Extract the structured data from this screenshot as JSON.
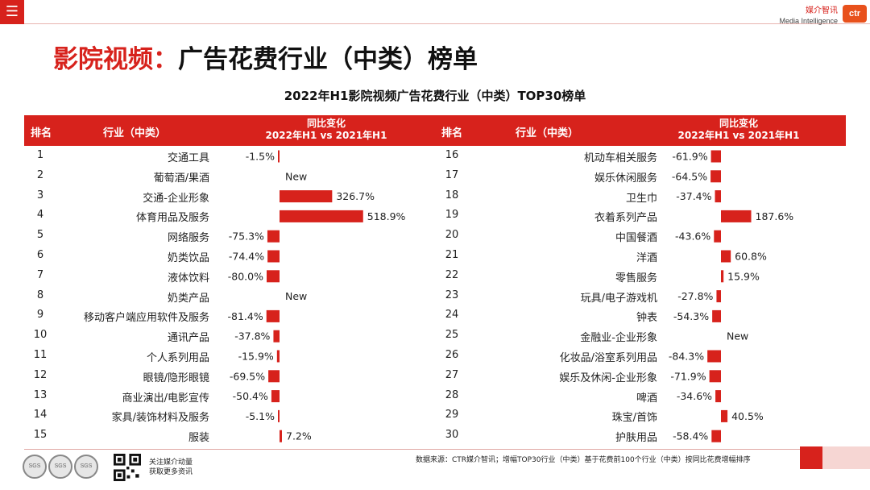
{
  "menu_icon": "hamburger-icon",
  "brand": {
    "name_cn": "媒介智讯",
    "name_en": "Media Intelligence",
    "logo_text": "ctr"
  },
  "page_title": {
    "prefix": "影院视频：",
    "main": "广告花费行业（中类）榜单"
  },
  "table_headers": {
    "rank": "排名",
    "industry": "行业（中类）",
    "yoy_line1": "同比变化",
    "yoy_line2": "2022年H1 vs 2021年H1"
  },
  "chart_data": {
    "type": "bar",
    "orientation": "horizontal",
    "title": "2022年H1影院视频广告花费行业（中类）TOP30榜单",
    "value_unit": "%",
    "left_table": [
      {
        "rank": "1",
        "industry": "交通工具",
        "value": -1.5,
        "label": "-1.5%"
      },
      {
        "rank": "2",
        "industry": "葡萄酒/果酒",
        "value": null,
        "label": "New"
      },
      {
        "rank": "3",
        "industry": "交通-企业形象",
        "value": 326.7,
        "label": "326.7%"
      },
      {
        "rank": "4",
        "industry": "体育用品及服务",
        "value": 518.9,
        "label": "518.9%"
      },
      {
        "rank": "5",
        "industry": "网络服务",
        "value": -75.3,
        "label": "-75.3%"
      },
      {
        "rank": "6",
        "industry": "奶类饮品",
        "value": -74.4,
        "label": "-74.4%"
      },
      {
        "rank": "7",
        "industry": "液体饮料",
        "value": -80.0,
        "label": "-80.0%"
      },
      {
        "rank": "8",
        "industry": "奶类产品",
        "value": null,
        "label": "New"
      },
      {
        "rank": "9",
        "industry": "移动客户端应用软件及服务",
        "value": -81.4,
        "label": "-81.4%"
      },
      {
        "rank": "10",
        "industry": "通讯产品",
        "value": -37.8,
        "label": "-37.8%"
      },
      {
        "rank": "11",
        "industry": "个人系列用品",
        "value": -15.9,
        "label": "-15.9%"
      },
      {
        "rank": "12",
        "industry": "眼镜/隐形眼镜",
        "value": -69.5,
        "label": "-69.5%"
      },
      {
        "rank": "13",
        "industry": "商业演出/电影宣传",
        "value": -50.4,
        "label": "-50.4%"
      },
      {
        "rank": "14",
        "industry": "家具/装饰材料及服务",
        "value": -5.1,
        "label": "-5.1%"
      },
      {
        "rank": "15",
        "industry": "服装",
        "value": 7.2,
        "label": "7.2%"
      }
    ],
    "right_table": [
      {
        "rank": "16",
        "industry": "机动车相关服务",
        "value": -61.9,
        "label": "-61.9%"
      },
      {
        "rank": "17",
        "industry": "娱乐休闲服务",
        "value": -64.5,
        "label": "-64.5%"
      },
      {
        "rank": "18",
        "industry": "卫生巾",
        "value": -37.4,
        "label": "-37.4%"
      },
      {
        "rank": "19",
        "industry": "衣着系列产品",
        "value": 187.6,
        "label": "187.6%"
      },
      {
        "rank": "20",
        "industry": "中国餐酒",
        "value": -43.6,
        "label": "-43.6%"
      },
      {
        "rank": "21",
        "industry": "洋酒",
        "value": 60.8,
        "label": "60.8%"
      },
      {
        "rank": "22",
        "industry": "零售服务",
        "value": 15.9,
        "label": "15.9%"
      },
      {
        "rank": "23",
        "industry": "玩具/电子游戏机",
        "value": -27.8,
        "label": "-27.8%"
      },
      {
        "rank": "24",
        "industry": "钟表",
        "value": -54.3,
        "label": "-54.3%"
      },
      {
        "rank": "25",
        "industry": "金融业-企业形象",
        "value": null,
        "label": "New"
      },
      {
        "rank": "26",
        "industry": "化妆品/浴室系列用品",
        "value": -84.3,
        "label": "-84.3%"
      },
      {
        "rank": "27",
        "industry": "娱乐及休闲-企业形象",
        "value": -71.9,
        "label": "-71.9%"
      },
      {
        "rank": "28",
        "industry": "啤酒",
        "value": -34.6,
        "label": "-34.6%"
      },
      {
        "rank": "29",
        "industry": "珠宝/首饰",
        "value": 40.5,
        "label": "40.5%"
      },
      {
        "rank": "30",
        "industry": "护肤用品",
        "value": -58.4,
        "label": "-58.4%"
      }
    ]
  },
  "footer": {
    "source_note": "数据来源：CTR媒介智讯；增幅TOP30行业（中类）基于花费前100个行业（中类）按同比花费增幅排序",
    "follow_line1": "关注媒介动量",
    "follow_line2": "获取更多资讯",
    "seal_text": "SGS"
  },
  "colors": {
    "accent": "#d7221c",
    "bar": "#d7221c",
    "header_text": "#ffffff"
  }
}
